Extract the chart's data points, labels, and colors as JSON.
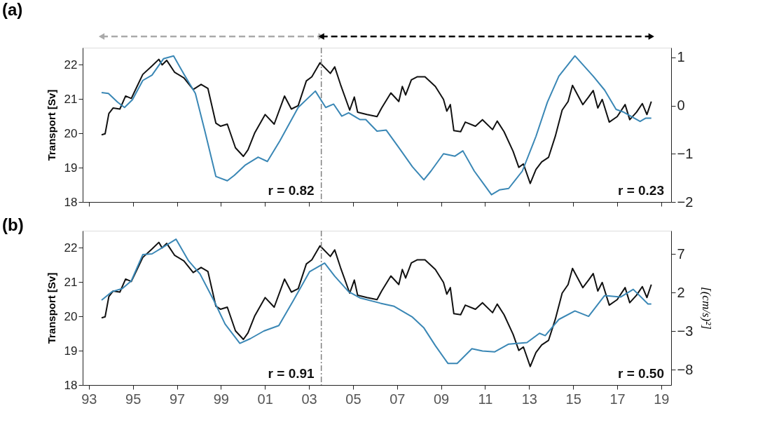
{
  "chart_data": [
    {
      "type": "line",
      "title": "(a)",
      "ylabel": "Transport [Sv]",
      "xlim": [
        1992.72,
        2019.45
      ],
      "xticks": [
        1993,
        1995,
        1997,
        1999,
        2001,
        2003,
        2005,
        2007,
        2009,
        2011,
        2013,
        2015,
        2017,
        2019
      ],
      "tick_labels": "y",
      "ylim": [
        18,
        22.5
      ],
      "yticks": [
        18,
        19,
        20,
        21,
        22
      ],
      "y2lim": [
        -2,
        1.2
      ],
      "y2ticks": [
        -2,
        -1,
        0,
        1
      ],
      "series": [
        {
          "color": "#111111",
          "axis": "y",
          "x": [
            1993.58,
            1993.74,
            1993.91,
            1994.1,
            1994.41,
            1994.67,
            1994.93,
            1995.19,
            1995.45,
            1995.87,
            1996.18,
            1996.33,
            1996.54,
            1996.9,
            1997.32,
            1997.74,
            1998.1,
            1998.41,
            1998.77,
            1998.98,
            1999.29,
            1999.66,
            2000.02,
            2000.23,
            2000.54,
            2001.01,
            2001.42,
            2001.89,
            2002.2,
            2002.51,
            2002.88,
            2003.13,
            2003.5,
            2003.97,
            2004.17,
            2004.43,
            2004.85,
            2005.06,
            2005.21,
            2005.63,
            2006.09,
            2006.3,
            2006.72,
            2007.08,
            2007.24,
            2007.39,
            2007.65,
            2007.91,
            2008.27,
            2008.74,
            2009.11,
            2009.26,
            2009.42,
            2009.58,
            2009.89,
            2010.1,
            2010.56,
            2010.88,
            2011.34,
            2011.55,
            2011.86,
            2012.27,
            2012.53,
            2012.74,
            2013.05,
            2013.31,
            2013.57,
            2013.88,
            2014.19,
            2014.5,
            2014.77,
            2014.97,
            2015.44,
            2015.7,
            2015.91,
            2016.12,
            2016.32,
            2016.64,
            2017.0,
            2017.36,
            2017.57,
            2017.88,
            2018.14,
            2018.35,
            2018.55
          ],
          "values": [
            19.96,
            19.99,
            20.58,
            20.74,
            20.71,
            21.09,
            21.02,
            21.37,
            21.72,
            21.97,
            22.16,
            22.0,
            22.13,
            21.78,
            21.62,
            21.28,
            21.43,
            21.31,
            20.3,
            20.21,
            20.27,
            19.58,
            19.33,
            19.52,
            20.02,
            20.55,
            20.27,
            21.09,
            20.71,
            20.81,
            21.53,
            21.65,
            22.06,
            21.75,
            21.94,
            21.43,
            20.68,
            21.06,
            20.62,
            20.55,
            20.49,
            20.74,
            21.18,
            20.93,
            21.37,
            21.12,
            21.56,
            21.65,
            21.65,
            21.37,
            20.99,
            20.65,
            20.84,
            20.08,
            20.05,
            20.33,
            20.21,
            20.4,
            20.11,
            20.36,
            20.05,
            19.48,
            19.01,
            19.11,
            18.54,
            18.95,
            19.17,
            19.3,
            19.92,
            20.68,
            20.93,
            21.4,
            20.84,
            21.06,
            21.25,
            20.74,
            20.99,
            20.33,
            20.49,
            20.84,
            20.4,
            20.62,
            20.87,
            20.55,
            20.93
          ]
        },
        {
          "color": "#3a87b5",
          "axis": "y2",
          "x": [
            1993.58,
            1993.89,
            1994.31,
            1994.62,
            1994.98,
            1995.45,
            1995.87,
            1996.39,
            1996.85,
            1997.32,
            1997.84,
            1998.26,
            1998.77,
            1999.29,
            1999.6,
            2000.12,
            2000.69,
            2001.11,
            2001.68,
            2002.51,
            2003.29,
            2003.76,
            2004.12,
            2004.49,
            2004.8,
            2005.31,
            2005.58,
            2006.09,
            2006.51,
            2007.08,
            2007.7,
            2008.22,
            2008.54,
            2009.11,
            2009.63,
            2009.99,
            2010.51,
            2011.29,
            2011.65,
            2012.07,
            2012.69,
            2013.31,
            2013.83,
            2014.35,
            2015.08,
            2015.91,
            2016.43,
            2016.95,
            2017.26,
            2018.04,
            2018.3,
            2018.55
          ],
          "values": [
            0.27,
            0.25,
            0.07,
            -0.04,
            0.12,
            0.52,
            0.63,
            0.97,
            1.03,
            0.65,
            0.25,
            -0.51,
            -1.47,
            -1.56,
            -1.45,
            -1.23,
            -1.07,
            -1.16,
            -0.73,
            -0.04,
            0.3,
            -0.04,
            0.03,
            -0.22,
            -0.15,
            -0.29,
            -0.29,
            -0.53,
            -0.51,
            -0.87,
            -1.27,
            -1.54,
            -1.36,
            -1.0,
            -1.05,
            -0.94,
            -1.36,
            -1.85,
            -1.75,
            -1.72,
            -1.36,
            -0.64,
            0.07,
            0.61,
            1.03,
            0.61,
            0.32,
            -0.08,
            -0.13,
            -0.33,
            -0.26,
            -0.26
          ]
        }
      ],
      "ref_lines": [
        {
          "axis": "x",
          "value": 2003.56,
          "color": "#808080",
          "line_style": "dashdot"
        }
      ],
      "annotations": [
        "r = 0.82",
        "r = 0.23"
      ]
    },
    {
      "type": "line",
      "title": "(b)",
      "ylabel": "Transport [Sv]",
      "y2label": "[(cm/s)²]",
      "xlim": [
        1992.72,
        2019.45
      ],
      "xticks": [
        {
          "value": 1993,
          "label": "93"
        },
        {
          "value": 1995,
          "label": "95"
        },
        {
          "value": 1997,
          "label": "97"
        },
        {
          "value": 1999,
          "label": "99"
        },
        {
          "value": 2001,
          "label": "01"
        },
        {
          "value": 2003,
          "label": "03"
        },
        {
          "value": 2005,
          "label": "05"
        },
        {
          "value": 2007,
          "label": "07"
        },
        {
          "value": 2009,
          "label": "09"
        },
        {
          "value": 2011,
          "label": "11"
        },
        {
          "value": 2013,
          "label": "13"
        },
        {
          "value": 2015,
          "label": "15"
        },
        {
          "value": 2017,
          "label": "17"
        },
        {
          "value": 2019,
          "label": "19"
        }
      ],
      "ylim": [
        18,
        22.5
      ],
      "yticks": [
        18,
        19,
        20,
        21,
        22
      ],
      "y2lim": [
        -10,
        10
      ],
      "y2ticks": [
        -8,
        -3,
        2,
        7
      ],
      "series": [
        {
          "color": "#111111",
          "axis": "y",
          "x": [
            1993.58,
            1993.74,
            1993.91,
            1994.1,
            1994.41,
            1994.67,
            1994.93,
            1995.19,
            1995.45,
            1995.87,
            1996.18,
            1996.33,
            1996.54,
            1996.9,
            1997.32,
            1997.74,
            1998.1,
            1998.41,
            1998.77,
            1998.98,
            1999.29,
            1999.66,
            2000.02,
            2000.23,
            2000.54,
            2001.01,
            2001.42,
            2001.89,
            2002.2,
            2002.51,
            2002.88,
            2003.13,
            2003.5,
            2003.97,
            2004.17,
            2004.43,
            2004.85,
            2005.06,
            2005.21,
            2005.63,
            2006.09,
            2006.3,
            2006.72,
            2007.08,
            2007.24,
            2007.39,
            2007.65,
            2007.91,
            2008.27,
            2008.74,
            2009.11,
            2009.26,
            2009.42,
            2009.58,
            2009.89,
            2010.1,
            2010.56,
            2010.88,
            2011.34,
            2011.55,
            2011.86,
            2012.27,
            2012.53,
            2012.74,
            2013.05,
            2013.31,
            2013.57,
            2013.88,
            2014.19,
            2014.5,
            2014.77,
            2014.97,
            2015.44,
            2015.7,
            2015.91,
            2016.12,
            2016.32,
            2016.64,
            2017.0,
            2017.36,
            2017.57,
            2017.88,
            2018.14,
            2018.35,
            2018.55
          ],
          "values": [
            19.96,
            19.99,
            20.58,
            20.74,
            20.71,
            21.09,
            21.02,
            21.37,
            21.72,
            21.97,
            22.16,
            22.0,
            22.13,
            21.78,
            21.62,
            21.28,
            21.43,
            21.31,
            20.3,
            20.21,
            20.27,
            19.58,
            19.33,
            19.52,
            20.02,
            20.55,
            20.27,
            21.09,
            20.71,
            20.81,
            21.53,
            21.65,
            22.06,
            21.75,
            21.94,
            21.43,
            20.68,
            21.06,
            20.62,
            20.55,
            20.49,
            20.74,
            21.18,
            20.93,
            21.37,
            21.12,
            21.56,
            21.65,
            21.65,
            21.37,
            20.99,
            20.65,
            20.84,
            20.08,
            20.05,
            20.33,
            20.21,
            20.4,
            20.11,
            20.36,
            20.05,
            19.48,
            19.01,
            19.11,
            18.54,
            18.95,
            19.17,
            19.3,
            19.92,
            20.68,
            20.93,
            21.4,
            20.84,
            21.06,
            21.25,
            20.74,
            20.99,
            20.33,
            20.49,
            20.84,
            20.4,
            20.62,
            20.87,
            20.55,
            20.93
          ]
        },
        {
          "color": "#3a87b5",
          "axis": "y2",
          "x": [
            1993.58,
            1994.05,
            1994.52,
            1994.93,
            1995.45,
            1995.87,
            1996.39,
            1996.96,
            1997.53,
            1998.05,
            1998.67,
            1999.19,
            1999.86,
            2000.33,
            2000.95,
            2001.63,
            2002.3,
            2003.03,
            2003.71,
            2004.17,
            2004.8,
            2005.31,
            2006.25,
            2006.87,
            2007.7,
            2008.22,
            2008.74,
            2009.31,
            2009.73,
            2010.4,
            2010.88,
            2011.44,
            2012.07,
            2012.9,
            2013.47,
            2013.73,
            2014.35,
            2015.08,
            2015.7,
            2016.43,
            2017.15,
            2017.73,
            2018.4,
            2018.55
          ],
          "values": [
            1.0,
            2.1,
            2.5,
            3.5,
            6.9,
            7.0,
            7.9,
            8.9,
            6.1,
            4.4,
            1.0,
            -2.1,
            -4.6,
            -4.0,
            -3.0,
            -2.3,
            1.0,
            4.7,
            5.8,
            4.1,
            2.1,
            1.3,
            0.6,
            0.2,
            -1.2,
            -2.6,
            -4.9,
            -7.2,
            -7.2,
            -5.3,
            -5.6,
            -5.7,
            -4.7,
            -4.5,
            -3.3,
            -3.6,
            -1.5,
            -0.4,
            -1.1,
            1.6,
            1.4,
            2.4,
            0.5,
            0.5
          ]
        }
      ],
      "ref_lines": [
        {
          "axis": "x",
          "value": 2003.56,
          "color": "#808080",
          "line_style": "dashdot"
        }
      ],
      "annotations": [
        "r = 0.91",
        "r = 0.50"
      ]
    }
  ]
}
